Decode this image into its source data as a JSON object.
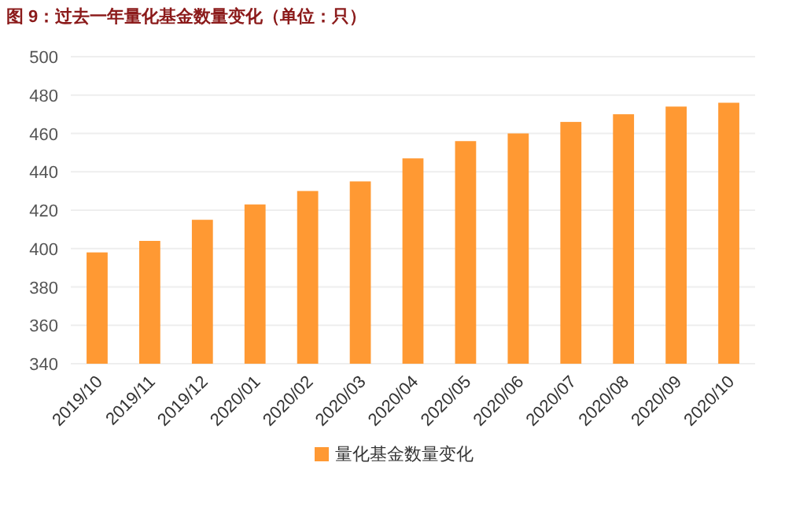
{
  "chart_data": {
    "type": "bar",
    "title": "图 9：过去一年量化基金数量变化（单位：只）",
    "categories": [
      "2019/10",
      "2019/11",
      "2019/12",
      "2020/01",
      "2020/02",
      "2020/03",
      "2020/04",
      "2020/05",
      "2020/06",
      "2020/07",
      "2020/08",
      "2020/09",
      "2020/10"
    ],
    "series": [
      {
        "name": "量化基金数量变化",
        "color": "#ff9933",
        "values": [
          398,
          404,
          415,
          423,
          430,
          435,
          447,
          456,
          460,
          466,
          470,
          474,
          476
        ]
      }
    ],
    "ylim": [
      340,
      500
    ],
    "yticks": [
      340,
      360,
      380,
      400,
      420,
      440,
      460,
      480,
      500
    ],
    "grid": "y",
    "legend": "bottom"
  }
}
